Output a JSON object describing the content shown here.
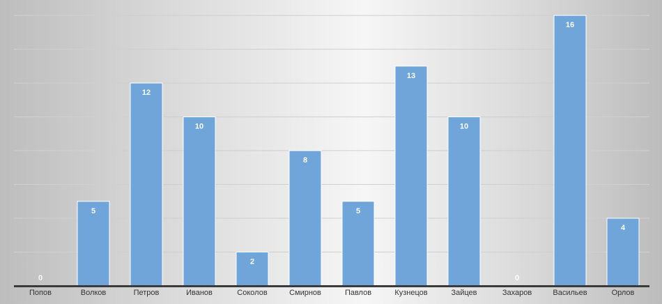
{
  "chart_data": {
    "type": "bar",
    "categories": [
      "Попов",
      "Волков",
      "Петров",
      "Иванов",
      "Соколов",
      "Смирнов",
      "Павлов",
      "Кузнецов",
      "Зайцев",
      "Захаров",
      "Васильев",
      "Орлов"
    ],
    "values": [
      0,
      5,
      12,
      10,
      2,
      8,
      5,
      13,
      10,
      0,
      16,
      4
    ],
    "title": "",
    "xlabel": "",
    "ylabel": "",
    "ylim": [
      0,
      16.5
    ],
    "grid": true,
    "legend": "none",
    "data_labels": true,
    "colors": {
      "bar": "#6fa5d9",
      "bar_stroke": "#ffffff",
      "data_label": "#ffffff",
      "zero_label": "#ffffff",
      "axis": "#3a3a3a",
      "gridline": "#cfcfcf",
      "tick_label": "#333333"
    }
  }
}
